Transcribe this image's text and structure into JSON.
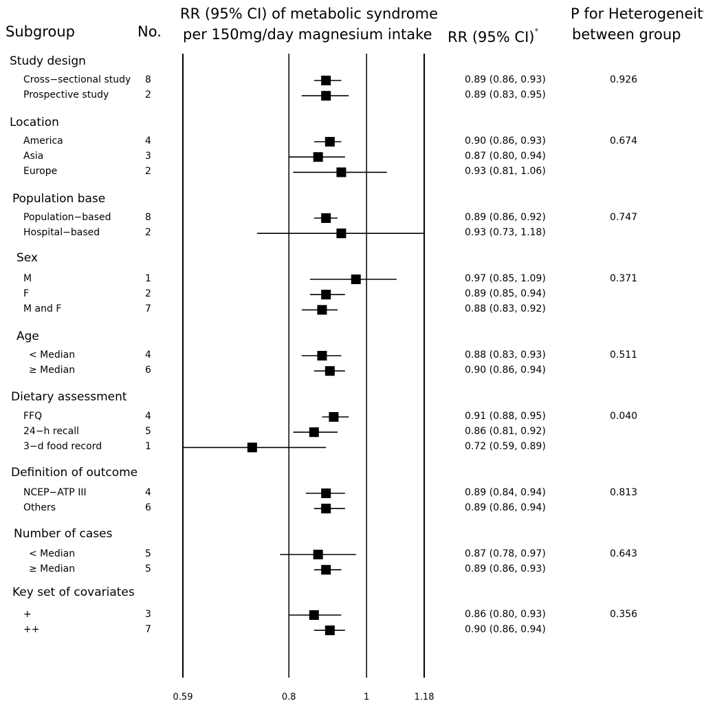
{
  "header": {
    "subgroup": "Subgroup",
    "no": "No.",
    "plot_title_line1": "RR (95% CI) of metabolic syndrome",
    "plot_title_line2": "per 150mg/day magnesium intake",
    "rr_col": "RR (95% CI)",
    "rr_mark": "*",
    "phet_line1": "P for Heterogeneity",
    "phet_line2": "between group"
  },
  "chart_data": {
    "type": "forest",
    "scale": "log",
    "xlim": [
      0.59,
      1.18
    ],
    "xticks": [
      0.59,
      0.8,
      1,
      1.18
    ],
    "xtick_labels": [
      "0.59",
      "0.8",
      "1",
      "1.18"
    ],
    "reference_lines": [
      0.8,
      1
    ],
    "groups": [
      {
        "name": "Study design",
        "rows": [
          {
            "label": "Cross−sectional study",
            "n": "8",
            "rr": 0.89,
            "lo": 0.86,
            "hi": 0.93,
            "text": "0.89 (0.86, 0.93)",
            "p": "0.926"
          },
          {
            "label": "Prospective study",
            "n": "2",
            "rr": 0.89,
            "lo": 0.83,
            "hi": 0.95,
            "text": "0.89 (0.83, 0.95)",
            "p": ""
          }
        ]
      },
      {
        "name": "Location",
        "rows": [
          {
            "label": "America",
            "n": "4",
            "rr": 0.9,
            "lo": 0.86,
            "hi": 0.93,
            "text": "0.90 (0.86, 0.93)",
            "p": "0.674"
          },
          {
            "label": "Asia",
            "n": "3",
            "rr": 0.87,
            "lo": 0.8,
            "hi": 0.94,
            "text": "0.87 (0.80, 0.94)",
            "p": ""
          },
          {
            "label": "Europe",
            "n": "2",
            "rr": 0.93,
            "lo": 0.81,
            "hi": 1.06,
            "text": "0.93 (0.81, 1.06)",
            "p": ""
          }
        ]
      },
      {
        "name": "Population base",
        "rows": [
          {
            "label": "Population−based",
            "n": "8",
            "rr": 0.89,
            "lo": 0.86,
            "hi": 0.92,
            "text": "0.89 (0.86, 0.92)",
            "p": "0.747"
          },
          {
            "label": "Hospital−based",
            "n": "2",
            "rr": 0.93,
            "lo": 0.73,
            "hi": 1.18,
            "text": "0.93 (0.73, 1.18)",
            "p": ""
          }
        ]
      },
      {
        "name": "Sex",
        "rows": [
          {
            "label": "M",
            "n": "1",
            "rr": 0.97,
            "lo": 0.85,
            "hi": 1.09,
            "text": "0.97 (0.85, 1.09)",
            "p": "0.371"
          },
          {
            "label": "F",
            "n": "2",
            "rr": 0.89,
            "lo": 0.85,
            "hi": 0.94,
            "text": "0.89 (0.85, 0.94)",
            "p": ""
          },
          {
            "label": "M and F",
            "n": "7",
            "rr": 0.88,
            "lo": 0.83,
            "hi": 0.92,
            "text": "0.88 (0.83, 0.92)",
            "p": ""
          }
        ]
      },
      {
        "name": "Age",
        "rows": [
          {
            "label": "< Median",
            "n": "4",
            "rr": 0.88,
            "lo": 0.83,
            "hi": 0.93,
            "text": "0.88 (0.83, 0.93)",
            "p": "0.511"
          },
          {
            "label": "≥ Median",
            "n": "6",
            "rr": 0.9,
            "lo": 0.86,
            "hi": 0.94,
            "text": "0.90 (0.86, 0.94)",
            "p": ""
          }
        ]
      },
      {
        "name": "Dietary assessment",
        "rows": [
          {
            "label": "FFQ",
            "n": "4",
            "rr": 0.91,
            "lo": 0.88,
            "hi": 0.95,
            "text": "0.91 (0.88, 0.95)",
            "p": "0.040"
          },
          {
            "label": "24−h recall",
            "n": "5",
            "rr": 0.86,
            "lo": 0.81,
            "hi": 0.92,
            "text": "0.86 (0.81, 0.92)",
            "p": ""
          },
          {
            "label": "3−d food record",
            "n": "1",
            "rr": 0.72,
            "lo": 0.59,
            "hi": 0.89,
            "text": "0.72 (0.59, 0.89)",
            "p": ""
          }
        ]
      },
      {
        "name": "Definition of outcome",
        "rows": [
          {
            "label": "NCEP−ATP III",
            "n": "4",
            "rr": 0.89,
            "lo": 0.84,
            "hi": 0.94,
            "text": "0.89 (0.84, 0.94)",
            "p": "0.813"
          },
          {
            "label": "Others",
            "n": "6",
            "rr": 0.89,
            "lo": 0.86,
            "hi": 0.94,
            "text": "0.89 (0.86, 0.94)",
            "p": ""
          }
        ]
      },
      {
        "name": "Number of cases",
        "rows": [
          {
            "label": "< Median",
            "n": "5",
            "rr": 0.87,
            "lo": 0.78,
            "hi": 0.97,
            "text": "0.87 (0.78, 0.97)",
            "p": "0.643"
          },
          {
            "label": "≥ Median",
            "n": "5",
            "rr": 0.89,
            "lo": 0.86,
            "hi": 0.93,
            "text": "0.89 (0.86, 0.93)",
            "p": ""
          }
        ]
      },
      {
        "name": "Key set of covariates",
        "rows": [
          {
            "label": "+",
            "n": "3",
            "rr": 0.86,
            "lo": 0.8,
            "hi": 0.93,
            "text": "0.86 (0.80, 0.93)",
            "p": "0.356"
          },
          {
            "label": "++",
            "n": "7",
            "rr": 0.9,
            "lo": 0.86,
            "hi": 0.94,
            "text": "0.90 (0.86, 0.94)",
            "p": ""
          }
        ]
      }
    ]
  }
}
